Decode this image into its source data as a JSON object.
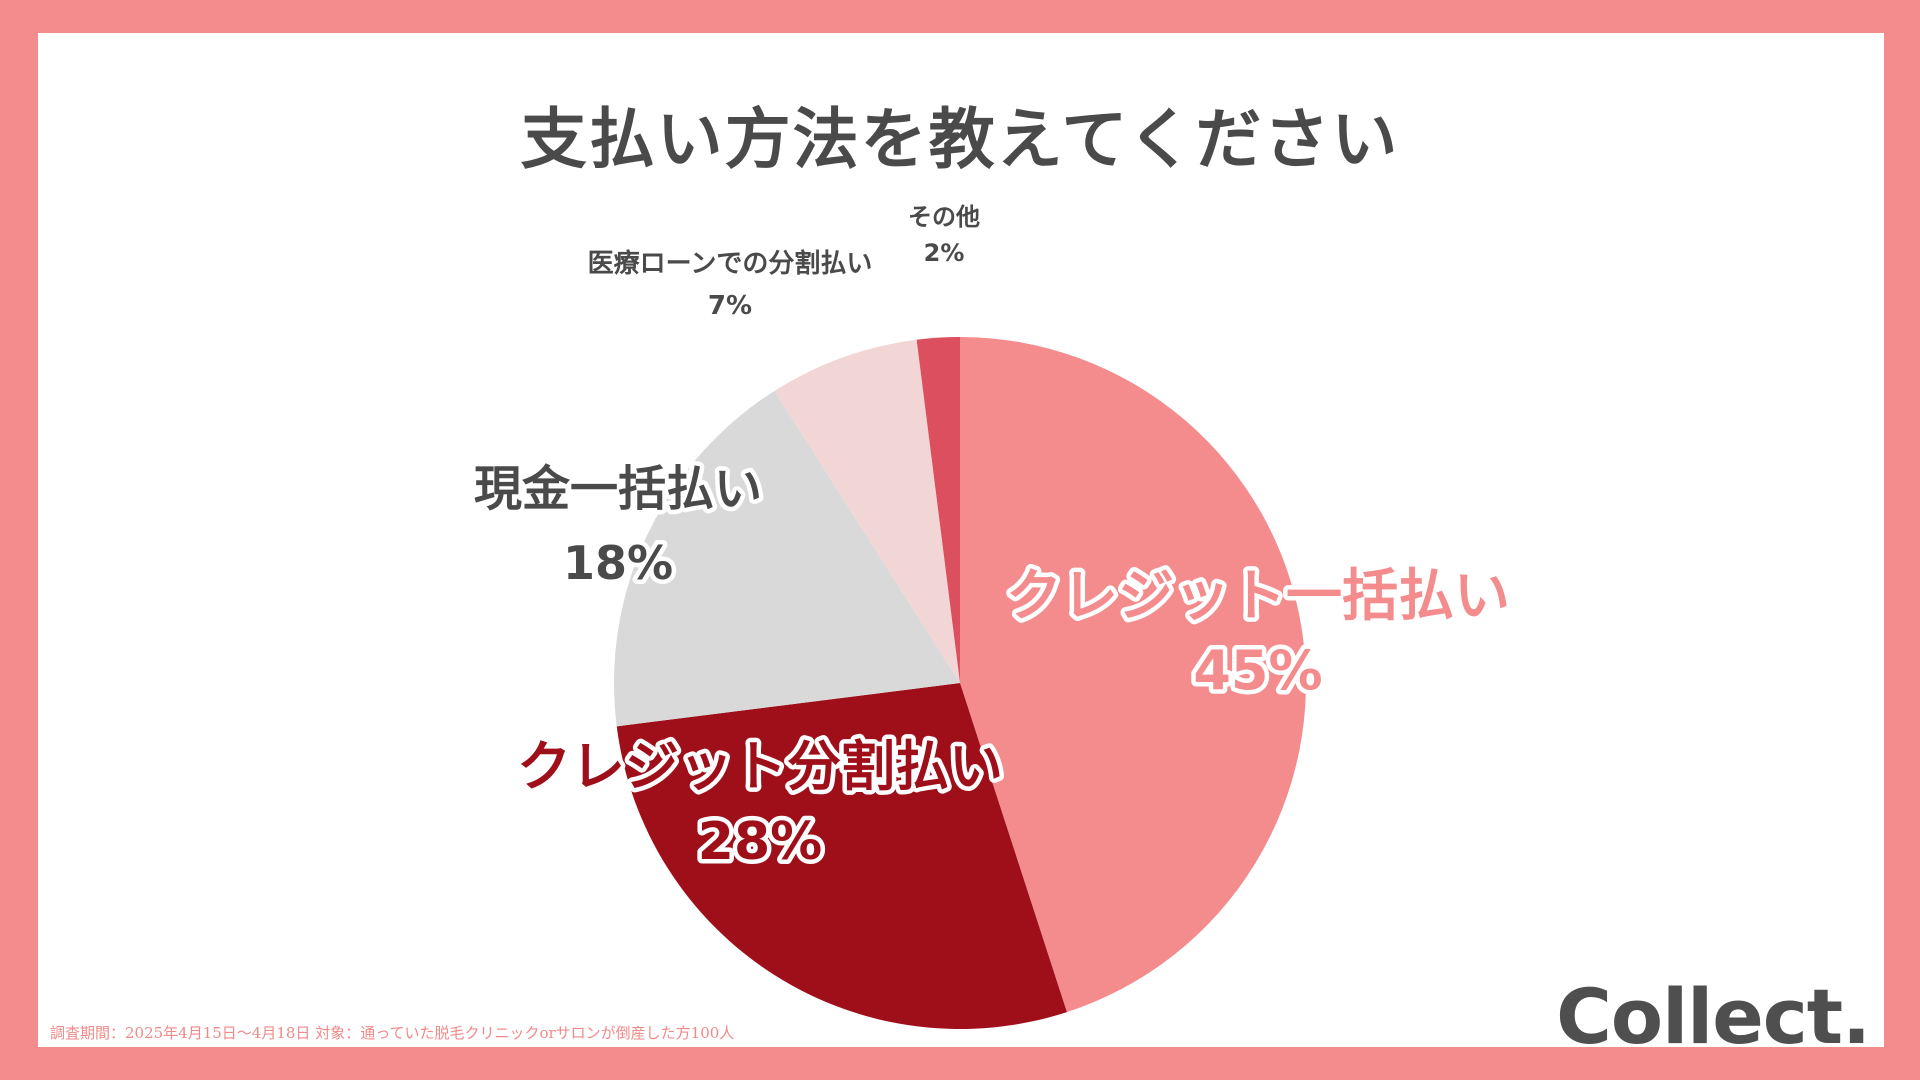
{
  "chart_data": {
    "type": "pie",
    "title": "支払い方法を教えてください",
    "slices": [
      {
        "label": "クレジット一括払い",
        "value": 45,
        "value_label": "45%",
        "color": "#f48b8c",
        "label_color": "#f48b8c",
        "label_style": "outlined-white"
      },
      {
        "label": "クレジット分割払い",
        "value": 28,
        "value_label": "28%",
        "color": "#9e0f1a",
        "label_color": "#9e0f1a",
        "label_style": "outlined-white"
      },
      {
        "label": "現金一括払い",
        "value": 18,
        "value_label": "18%",
        "color": "#d9d9d9",
        "label_color": "#4a4a4a",
        "label_style": "outlined-white"
      },
      {
        "label": "医療ローンでの分割払い",
        "value": 7,
        "value_label": "7%",
        "color": "#f2d6d6",
        "label_color": "#4a4a4a",
        "label_style": "small"
      },
      {
        "label": "その他",
        "value": 2,
        "value_label": "2%",
        "color": "#dc4f5e",
        "label_color": "#4a4a4a",
        "label_style": "small"
      }
    ],
    "start": "12 o'clock",
    "direction": "clockwise"
  },
  "footnote": "調査期間：2025年4月15日～4月18日 対象：通っていた脱毛クリニックorサロンが倒産した方100人",
  "brand": {
    "logo_text": "Collect.",
    "background_color": "#f48b8c",
    "panel_color": "#ffffff"
  }
}
